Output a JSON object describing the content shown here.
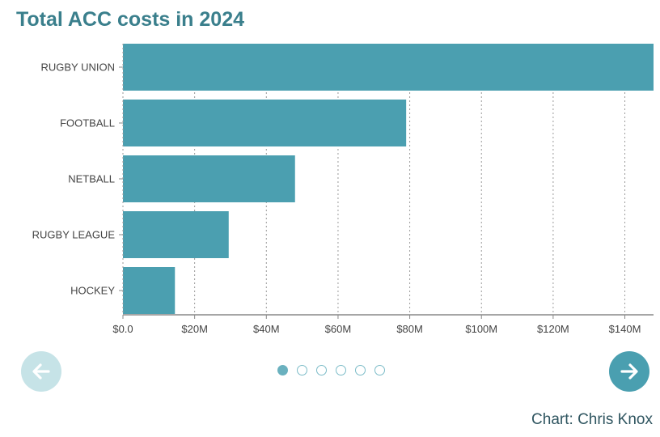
{
  "colors": {
    "title": "#3a7f8c",
    "bar": "#4b9fb0",
    "accent": "#4a9fb0",
    "accent_light": "#c6e3e7"
  },
  "chart_data": {
    "type": "bar",
    "orientation": "horizontal",
    "title": "Total ACC costs in 2024",
    "xlabel": "",
    "ylabel": "",
    "categories": [
      "RUGBY UNION",
      "FOOTBALL",
      "NETBALL",
      "RUGBY LEAGUE",
      "HOCKEY"
    ],
    "values": [
      148,
      79,
      48,
      29.5,
      14.5
    ],
    "units": "USD millions",
    "xlim": [
      0,
      148
    ],
    "xticks": [
      0,
      20,
      40,
      60,
      80,
      100,
      120,
      140
    ],
    "xtick_labels": [
      "$0.0",
      "$20M",
      "$40M",
      "$60M",
      "$80M",
      "$100M",
      "$120M",
      "$140M"
    ],
    "grid": "vertical dotted"
  },
  "carousel": {
    "prev_icon": "arrow-left-icon",
    "next_icon": "arrow-right-icon",
    "slide_count": 6,
    "active_index": 0
  },
  "credit": "Chart: Chris Knox"
}
